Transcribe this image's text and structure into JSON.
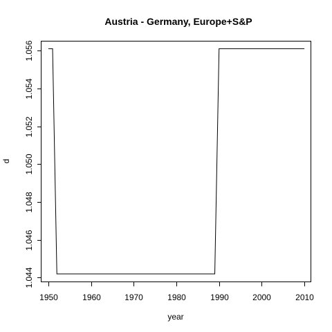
{
  "chart_data": {
    "type": "line",
    "title": "Austria - Germany, Europe+S&P",
    "xlabel": "year",
    "ylabel": "d",
    "xlim": [
      1948.4,
      2011.6
    ],
    "ylim": [
      1043.76,
      1056.48
    ],
    "y_scale_factor": 0.001,
    "x_ticks": [
      1950,
      1960,
      1970,
      1980,
      1990,
      2000,
      2010
    ],
    "x_tick_labels": [
      "1950",
      "1960",
      "1970",
      "1980",
      "1990",
      "2000",
      "2010"
    ],
    "y_ticks": [
      1044,
      1046,
      1048,
      1050,
      1052,
      1054,
      1056
    ],
    "y_tick_labels": [
      "1.044",
      "1.046",
      "1.048",
      "1.050",
      "1.052",
      "1.054",
      "1.056"
    ],
    "grid": false,
    "legend": "none",
    "series": [
      {
        "x": [
          1950,
          1951,
          1952,
          1989,
          1990,
          2010
        ],
        "y": [
          1056.1,
          1056.1,
          1044.2,
          1044.2,
          1056.1,
          1056.1
        ]
      }
    ]
  }
}
